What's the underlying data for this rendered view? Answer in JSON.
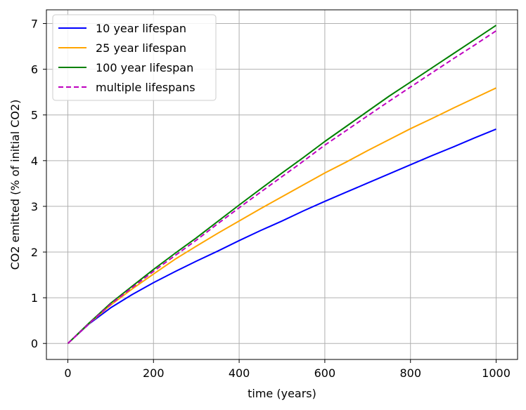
{
  "chart_data": {
    "type": "line",
    "xlabel": "time (years)",
    "ylabel": "CO2 emitted (% of initial CO2)",
    "xlim": [
      -50,
      1050
    ],
    "ylim": [
      -0.35,
      7.3
    ],
    "xticks": [
      0,
      200,
      400,
      600,
      800,
      1000
    ],
    "yticks": [
      0,
      1,
      2,
      3,
      4,
      5,
      6,
      7
    ],
    "grid": true,
    "legend_position": "top-left",
    "x": [
      0,
      50,
      100,
      150,
      200,
      250,
      300,
      350,
      400,
      450,
      500,
      550,
      600,
      650,
      700,
      750,
      800,
      850,
      900,
      950,
      1000
    ],
    "series": [
      {
        "name": "10 year lifespan",
        "color": "#0000ff",
        "style": "solid",
        "values": [
          0,
          0.43,
          0.78,
          1.07,
          1.33,
          1.57,
          1.8,
          2.02,
          2.25,
          2.47,
          2.68,
          2.9,
          3.11,
          3.31,
          3.51,
          3.71,
          3.91,
          4.11,
          4.3,
          4.5,
          4.69
        ]
      },
      {
        "name": "25 year lifespan",
        "color": "#ffa500",
        "style": "solid",
        "values": [
          0,
          0.44,
          0.84,
          1.19,
          1.52,
          1.84,
          2.13,
          2.41,
          2.68,
          2.95,
          3.21,
          3.47,
          3.73,
          3.97,
          4.22,
          4.46,
          4.7,
          4.92,
          5.15,
          5.37,
          5.59
        ]
      },
      {
        "name": "100 year lifespan",
        "color": "#008000",
        "style": "solid",
        "values": [
          0,
          0.45,
          0.88,
          1.25,
          1.62,
          1.97,
          2.31,
          2.67,
          3.03,
          3.38,
          3.73,
          4.07,
          4.42,
          4.75,
          5.08,
          5.41,
          5.72,
          6.03,
          6.34,
          6.65,
          6.96
        ]
      },
      {
        "name": "multiple lifespans",
        "color": "#bf00bf",
        "style": "dashed",
        "values": [
          0,
          0.44,
          0.86,
          1.22,
          1.58,
          1.92,
          2.26,
          2.62,
          2.97,
          3.31,
          3.65,
          3.99,
          4.34,
          4.66,
          4.98,
          5.3,
          5.61,
          5.92,
          6.23,
          6.53,
          6.84
        ]
      }
    ]
  }
}
